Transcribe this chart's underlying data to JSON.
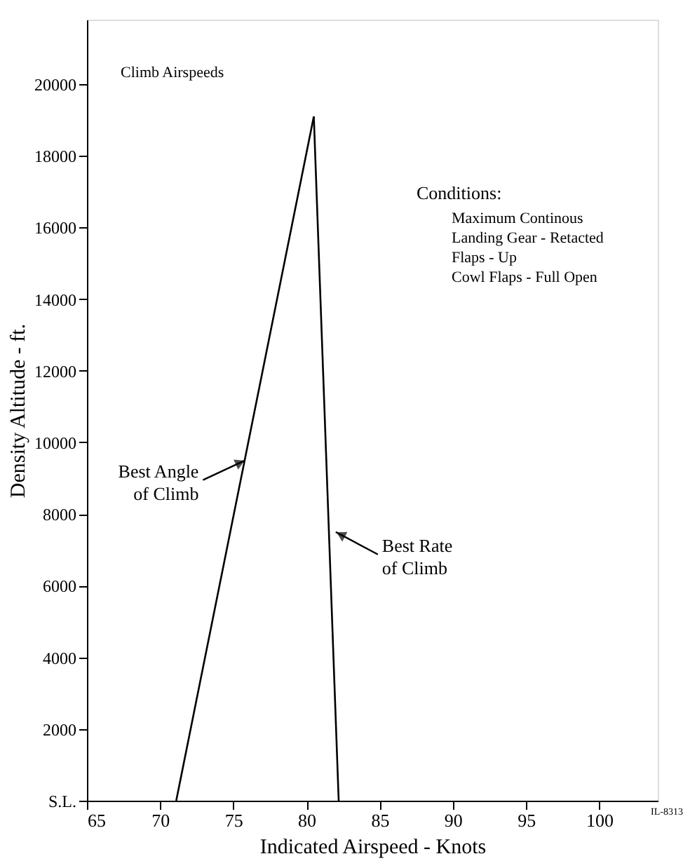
{
  "chart_data": {
    "type": "line",
    "title": "Climb Airspeeds",
    "xlabel": "Indicated Airspeed - Knots",
    "ylabel": "Density Altitude - ft.",
    "xlim": [
      65,
      104
    ],
    "xticks": [
      65,
      70,
      75,
      80,
      85,
      90,
      95,
      100
    ],
    "ylim": [
      0,
      21800
    ],
    "yticks": [
      {
        "value": 0,
        "label": "S.L."
      },
      2000,
      4000,
      6000,
      8000,
      10000,
      12000,
      14000,
      16000,
      18000,
      20000
    ],
    "series": [
      {
        "color": "#000000",
        "x": [
          71.1,
          80.5
        ],
        "values": [
          0,
          19100
        ]
      },
      {
        "color": "#000000",
        "x": [
          80.5,
          82.2
        ],
        "values": [
          19100,
          0
        ]
      }
    ],
    "annotations": [
      {
        "text": "Best Angle of Climb",
        "x": 75.8,
        "y": 9500
      },
      {
        "text": "Best Rate of Climb",
        "x": 82.0,
        "y": 7500
      },
      "Conditions:",
      "Maximum Continous",
      "Landing Gear - Retacted",
      "Flaps - Up",
      "Cowl Flaps - Full Open",
      "IL-8313"
    ],
    "grid": false,
    "marker": "none",
    "line_style": "solid"
  }
}
